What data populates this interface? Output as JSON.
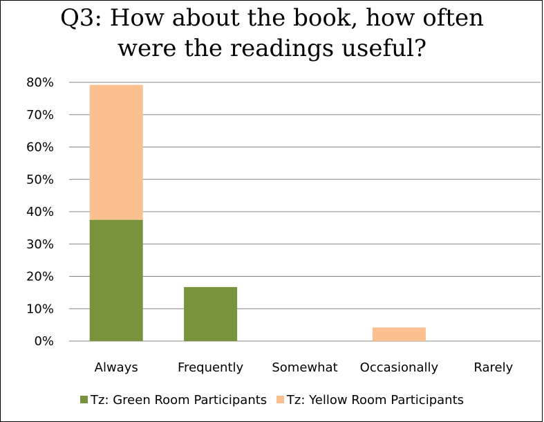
{
  "chart_data": {
    "type": "bar",
    "stacked": true,
    "title": "Q3: How about the book, how often were the readings useful?",
    "title_lines": [
      "Q3: How about the book, how often",
      "were the readings useful?"
    ],
    "categories": [
      "Always",
      "Frequently",
      "Somewhat",
      "Occasionally",
      "Rarely"
    ],
    "series": [
      {
        "name": "Tz: Green Room Participants",
        "color": "#77933c",
        "values": [
          37.5,
          16.7,
          0,
          0,
          0
        ]
      },
      {
        "name": "Tz: Yellow Room Participants",
        "color": "#fac090",
        "values": [
          41.7,
          0,
          0,
          4.2,
          0
        ]
      }
    ],
    "yticks": [
      "0%",
      "10%",
      "20%",
      "30%",
      "40%",
      "50%",
      "60%",
      "70%",
      "80%"
    ],
    "ylim": [
      0,
      80
    ],
    "ytick_step": 10,
    "xlabel": "",
    "ylabel": "",
    "grid": true,
    "gridline_color": "#868686",
    "legend_position": "bottom"
  }
}
